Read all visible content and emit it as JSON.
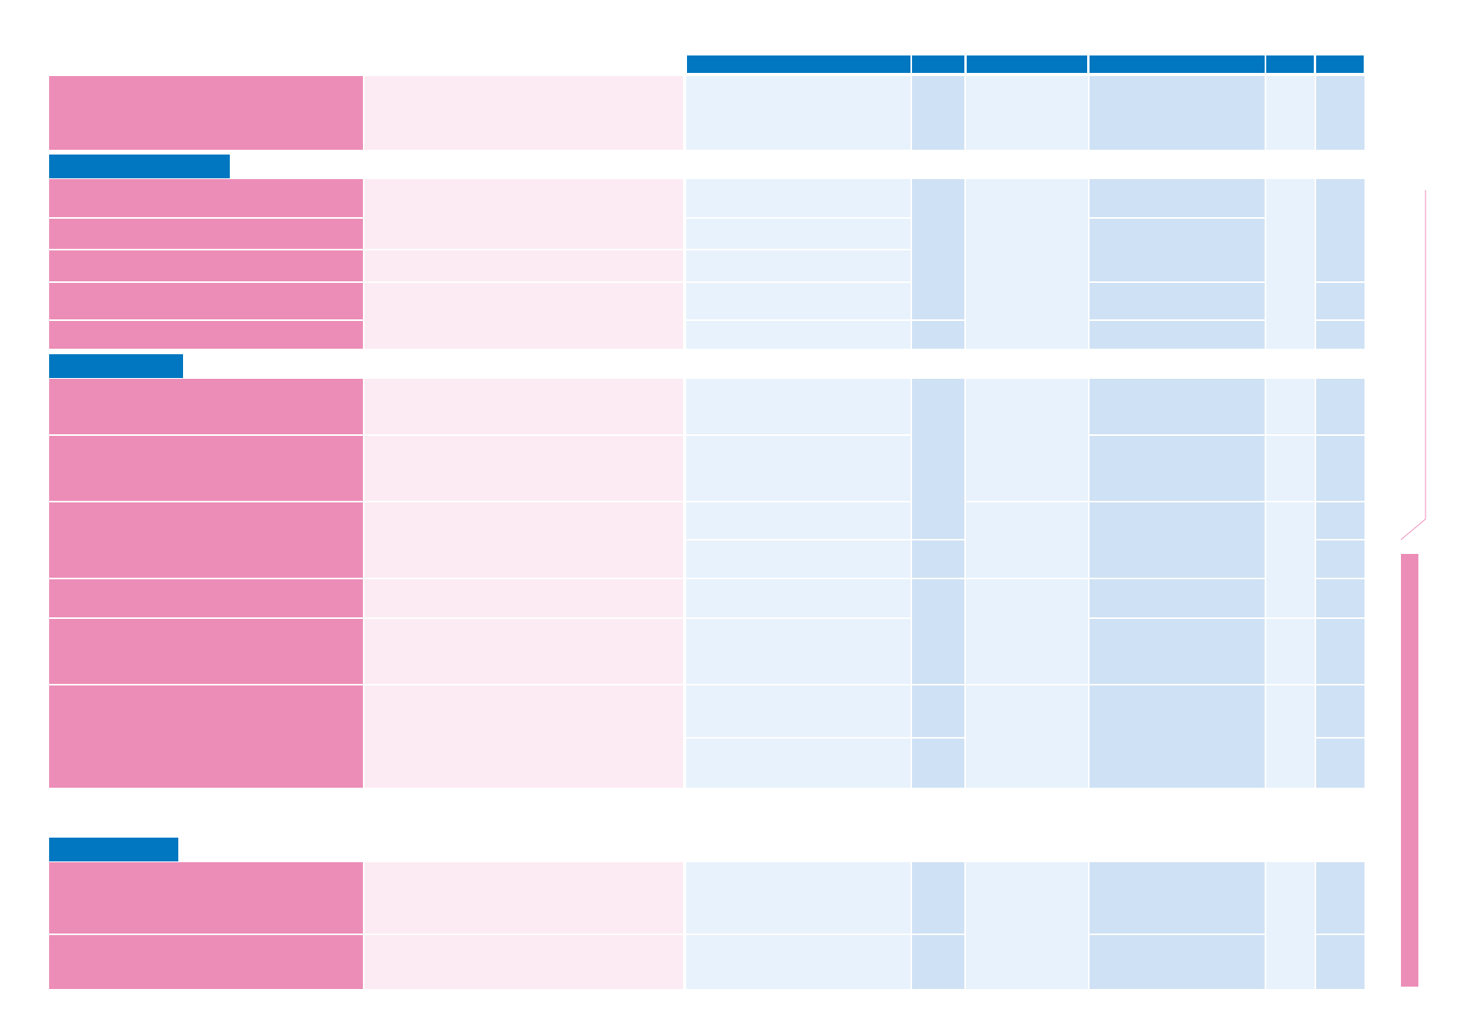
{
  "colors": {
    "header_blue": "#0077c0",
    "pink": "#ec8db7",
    "light_pink": "#fcebf2",
    "light_blue_1": "#e8f2fc",
    "light_blue_2": "#cfe1f4"
  },
  "header": {
    "columns": [
      "",
      "",
      "",
      "",
      "",
      ""
    ]
  },
  "sections": [
    {
      "title": "",
      "rows": []
    },
    {
      "title": "",
      "rows": []
    },
    {
      "title": "",
      "rows": []
    },
    {
      "title": "",
      "rows": []
    }
  ]
}
